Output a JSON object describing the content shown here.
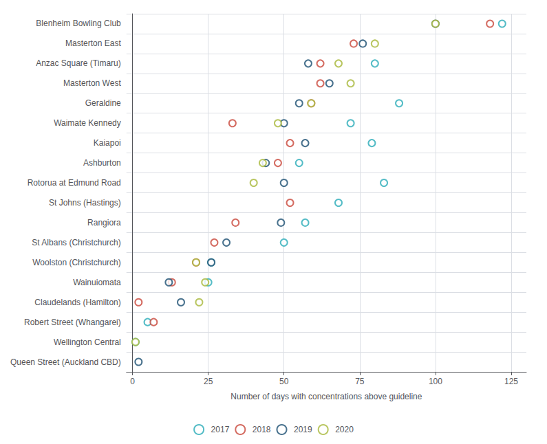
{
  "chart_data": {
    "type": "scatter",
    "xlabel": "Number of days with concentrations above guideline",
    "categories": [
      "Queen Street (Auckland CBD)",
      "Wellington Central",
      "Robert Street (Whangarei)",
      "Claudelands (Hamilton)",
      "Wainuiomata",
      "Woolston (Christchurch)",
      "St Albans (Christchurch)",
      "Rangiora",
      "St Johns (Hastings)",
      "Rotorua at Edmund Road",
      "Ashburton",
      "Kaiapoi",
      "Waimate Kennedy",
      "Geraldine",
      "Masterton West",
      "Anzac Square (Timaru)",
      "Masterton East",
      "Blenheim Bowling Club"
    ],
    "series": [
      {
        "name": "2017",
        "color": "#29ABB8",
        "values": [
          null,
          1,
          5,
          null,
          25,
          26,
          50,
          57,
          68,
          83,
          55,
          79,
          72,
          88,
          null,
          80,
          null,
          122
        ]
      },
      {
        "name": "2018",
        "color": "#C9473B",
        "values": [
          null,
          null,
          7,
          2,
          13,
          21,
          27,
          34,
          52,
          null,
          48,
          52,
          33,
          59,
          62,
          62,
          73,
          118
        ]
      },
      {
        "name": "2019",
        "color": "#1B4F72",
        "values": [
          2,
          null,
          null,
          16,
          12,
          26,
          31,
          49,
          null,
          50,
          44,
          57,
          50,
          55,
          65,
          58,
          76,
          100
        ]
      },
      {
        "name": "2020",
        "color": "#A8B83A",
        "values": [
          null,
          1,
          null,
          22,
          24,
          21,
          null,
          null,
          null,
          40,
          43,
          null,
          48,
          59,
          72,
          68,
          80,
          100
        ]
      }
    ],
    "xlim": [
      -2,
      130
    ],
    "xticks": [
      0,
      25,
      50,
      75,
      100,
      125
    ],
    "grid": true,
    "legend": "bottom"
  }
}
